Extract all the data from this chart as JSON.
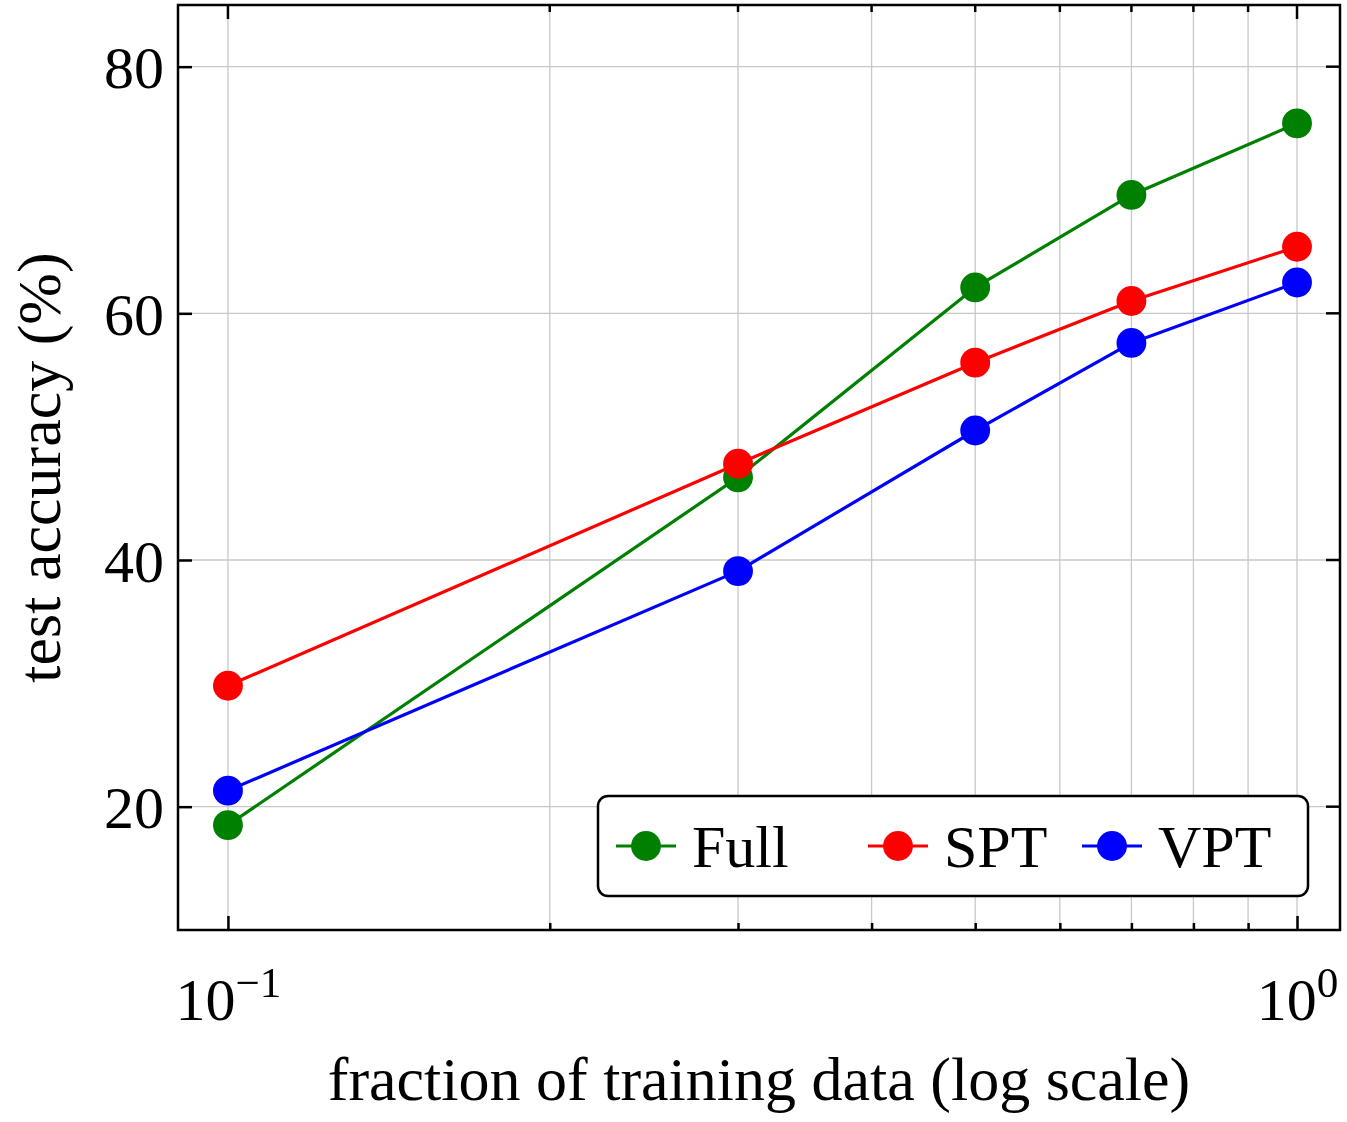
{
  "chart_data": {
    "type": "line",
    "xlabel": "fraction of training data (log scale)",
    "ylabel": "test accuracy (%)",
    "x": [
      0.1,
      0.3,
      0.5,
      0.7,
      1
    ],
    "series": [
      {
        "name": "Full",
        "color": "#008000",
        "values": [
          18.5,
          46.7,
          62.1,
          69.6,
          75.4
        ]
      },
      {
        "name": "SPT",
        "color": "#ff0000",
        "values": [
          29.8,
          47.8,
          56.0,
          61.0,
          65.4
        ]
      },
      {
        "name": "VPT",
        "color": "#0000ff",
        "values": [
          21.3,
          39.1,
          50.5,
          57.6,
          62.5
        ]
      }
    ],
    "log": "x",
    "xlim": [
      0.0898,
      1.097
    ],
    "ylim": [
      10,
      85
    ],
    "xticks": [
      {
        "value": 0.1,
        "label": "10$^{−1}$"
      },
      {
        "value": 0.2,
        "label": null
      },
      {
        "value": 0.3,
        "label": null
      },
      {
        "value": 0.4,
        "label": null
      },
      {
        "value": 0.5,
        "label": null
      },
      {
        "value": 0.6,
        "label": null
      },
      {
        "value": 0.7,
        "label": null
      },
      {
        "value": 0.8,
        "label": null
      },
      {
        "value": 0.9,
        "label": null
      },
      {
        "value": 1,
        "label": "10$^{0}$"
      }
    ],
    "yticks": [
      20,
      40,
      60,
      80
    ],
    "grid": true,
    "legend": "bottom right",
    "marker": "circle",
    "line_style": "solid"
  }
}
